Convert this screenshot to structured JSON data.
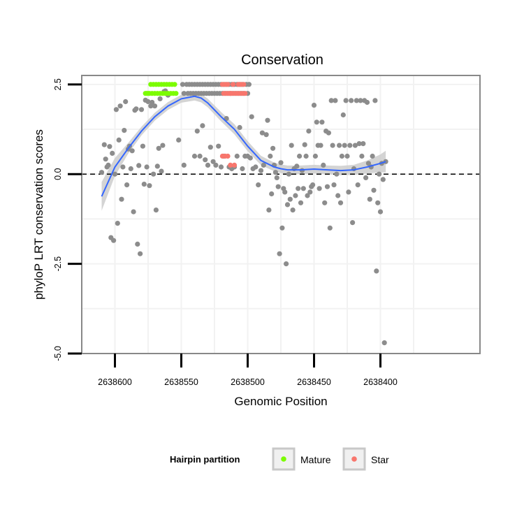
{
  "chart_data": {
    "type": "scatter",
    "title": "Conservation",
    "xlabel": "Genomic Position",
    "ylabel": "phyloP LRT conservation scores",
    "xlim": [
      2638325,
      2638625
    ],
    "x_reversed": true,
    "ylim": [
      -5.0,
      2.75
    ],
    "x_ticks": [
      2638600,
      2638550,
      2638500,
      2638450,
      2638400
    ],
    "x_tick_labels": [
      "2638600",
      "2638550",
      "2638500",
      "2638450",
      "2638400"
    ],
    "y_ticks": [
      2.5,
      0.0,
      -2.5,
      -5.0
    ],
    "y_tick_labels": [
      "2.5",
      "0.0",
      "-2.5",
      "-5.0"
    ],
    "grid": true,
    "reference_line": {
      "y": 0,
      "style": "dashed"
    },
    "legend": {
      "title": "Hairpin partition",
      "position": "bottom",
      "entries": [
        {
          "label": "Mature",
          "color": "#7CFC00"
        },
        {
          "label": "Star",
          "color": "#F8766D"
        }
      ]
    },
    "colors": {
      "other": "#8c8c8c",
      "smooth_line": "#3366FF",
      "smooth_band": "#cccccc",
      "panel_border": "#888888",
      "grid": "#f2f2f2"
    },
    "series": [
      {
        "name": "",
        "color": "#8c8c8c",
        "points": [
          [
            2638610,
            0.05
          ],
          [
            2638608,
            0.82
          ],
          [
            2638607,
            0.42
          ],
          [
            2638606,
            0.2
          ],
          [
            2638605,
            0.25
          ],
          [
            2638604,
            0.77
          ],
          [
            2638603,
            -1.77
          ],
          [
            2638602,
            0.58
          ],
          [
            2638601,
            -1.85
          ],
          [
            2638600,
            0.0
          ],
          [
            2638599,
            1.8
          ],
          [
            2638598,
            -1.37
          ],
          [
            2638597,
            0.95
          ],
          [
            2638596,
            1.9
          ],
          [
            2638595,
            -0.7
          ],
          [
            2638594,
            0.2
          ],
          [
            2638593,
            1.22
          ],
          [
            2638592,
            2.02
          ],
          [
            2638591,
            -0.3
          ],
          [
            2638590,
            0.7
          ],
          [
            2638589,
            0.78
          ],
          [
            2638588,
            0.15
          ],
          [
            2638587,
            0.65
          ],
          [
            2638586,
            -1.05
          ],
          [
            2638585,
            1.78
          ],
          [
            2638584,
            1.82
          ],
          [
            2638583,
            -1.95
          ],
          [
            2638582,
            0.24
          ],
          [
            2638581,
            -2.22
          ],
          [
            2638580,
            1.8
          ],
          [
            2638579,
            0.78
          ],
          [
            2638578,
            -0.28
          ],
          [
            2638577,
            2.06
          ],
          [
            2638576,
            0.2
          ],
          [
            2638575,
            2.02
          ],
          [
            2638574,
            -0.32
          ],
          [
            2638573,
            1.9
          ],
          [
            2638572,
            2.0
          ],
          [
            2638571,
            0.0
          ],
          [
            2638570,
            1.9
          ],
          [
            2638569,
            -1.0
          ],
          [
            2638568,
            0.22
          ],
          [
            2638567,
            0.72
          ],
          [
            2638566,
            2.1
          ],
          [
            2638565,
            0.08
          ],
          [
            2638564,
            0.8
          ],
          [
            2638563,
            2.3
          ],
          [
            2638562,
            2.32
          ],
          [
            2638561,
            2.25
          ],
          [
            2638560,
            2.2
          ],
          [
            2638549,
            2.5
          ],
          [
            2638548,
            2.25
          ],
          [
            2638546,
            2.5
          ],
          [
            2638545,
            2.25
          ],
          [
            2638544,
            2.5
          ],
          [
            2638543,
            2.25
          ],
          [
            2638542,
            2.5
          ],
          [
            2638541,
            2.25
          ],
          [
            2638540,
            2.5
          ],
          [
            2638539,
            2.25
          ],
          [
            2638538,
            2.5
          ],
          [
            2638537,
            2.25
          ],
          [
            2638536,
            2.5
          ],
          [
            2638535,
            2.25
          ],
          [
            2638534,
            2.5
          ],
          [
            2638533,
            2.25
          ],
          [
            2638532,
            2.5
          ],
          [
            2638531,
            2.25
          ],
          [
            2638530,
            2.5
          ],
          [
            2638529,
            2.25
          ],
          [
            2638528,
            2.5
          ],
          [
            2638527,
            2.25
          ],
          [
            2638526,
            2.5
          ],
          [
            2638525,
            2.25
          ],
          [
            2638524,
            2.5
          ],
          [
            2638523,
            2.25
          ],
          [
            2638522,
            2.5
          ],
          [
            2638521,
            2.25
          ],
          [
            2638520,
            2.5
          ],
          [
            2638519,
            2.25
          ],
          [
            2638518,
            2.5
          ],
          [
            2638517,
            2.25
          ],
          [
            2638516,
            2.5
          ],
          [
            2638515,
            2.25
          ],
          [
            2638514,
            2.5
          ],
          [
            2638513,
            2.25
          ],
          [
            2638512,
            2.5
          ],
          [
            2638511,
            2.25
          ],
          [
            2638510,
            2.5
          ],
          [
            2638509,
            2.25
          ],
          [
            2638508,
            2.5
          ],
          [
            2638507,
            2.25
          ],
          [
            2638506,
            2.5
          ],
          [
            2638505,
            2.25
          ],
          [
            2638504,
            2.5
          ],
          [
            2638503,
            2.25
          ],
          [
            2638501,
            2.5
          ],
          [
            2638500,
            2.25
          ],
          [
            2638499,
            2.5
          ],
          [
            2638552,
            0.95
          ],
          [
            2638548,
            0.25
          ],
          [
            2638540,
            0.5
          ],
          [
            2638538,
            1.2
          ],
          [
            2638536,
            0.5
          ],
          [
            2638534,
            1.35
          ],
          [
            2638532,
            0.4
          ],
          [
            2638530,
            0.25
          ],
          [
            2638528,
            0.75
          ],
          [
            2638526,
            0.35
          ],
          [
            2638524,
            0.25
          ],
          [
            2638522,
            0.78
          ],
          [
            2638520,
            0.2
          ],
          [
            2638518,
            0.5
          ],
          [
            2638516,
            1.55
          ],
          [
            2638514,
            0.2
          ],
          [
            2638512,
            0.15
          ],
          [
            2638510,
            0.2
          ],
          [
            2638508,
            0.5
          ],
          [
            2638506,
            1.3
          ],
          [
            2638504,
            0.15
          ],
          [
            2638502,
            0.5
          ],
          [
            2638500,
            0.5
          ],
          [
            2638498,
            0.45
          ],
          [
            2638497,
            1.6
          ],
          [
            2638496,
            0.15
          ],
          [
            2638494,
            0.2
          ],
          [
            2638492,
            -0.3
          ],
          [
            2638490,
            0.1
          ],
          [
            2638489,
            1.15
          ],
          [
            2638488,
            0.25
          ],
          [
            2638486,
            1.1
          ],
          [
            2638485,
            1.5
          ],
          [
            2638484,
            -1.0
          ],
          [
            2638483,
            0.5
          ],
          [
            2638482,
            -0.55
          ],
          [
            2638481,
            0.72
          ],
          [
            2638480,
            0.25
          ],
          [
            2638479,
            0.05
          ],
          [
            2638478,
            -0.1
          ],
          [
            2638477,
            -0.35
          ],
          [
            2638476,
            -2.22
          ],
          [
            2638475,
            0.32
          ],
          [
            2638474,
            -1.5
          ],
          [
            2638473,
            -0.4
          ],
          [
            2638472,
            -0.5
          ],
          [
            2638471,
            -2.5
          ],
          [
            2638470,
            -0.85
          ],
          [
            2638469,
            0.0
          ],
          [
            2638468,
            -0.7
          ],
          [
            2638467,
            0.8
          ],
          [
            2638466,
            -1.0
          ],
          [
            2638465,
            0.15
          ],
          [
            2638464,
            -0.6
          ],
          [
            2638463,
            0.22
          ],
          [
            2638462,
            -0.4
          ],
          [
            2638461,
            0.5
          ],
          [
            2638460,
            -0.8
          ],
          [
            2638459,
            0.1
          ],
          [
            2638458,
            -0.4
          ],
          [
            2638457,
            0.82
          ],
          [
            2638456,
            0.5
          ],
          [
            2638455,
            -0.6
          ],
          [
            2638454,
            1.2
          ],
          [
            2638453,
            -0.5
          ],
          [
            2638452,
            -0.35
          ],
          [
            2638451,
            -0.3
          ],
          [
            2638450,
            1.92
          ],
          [
            2638449,
            0.5
          ],
          [
            2638448,
            1.45
          ],
          [
            2638447,
            0.8
          ],
          [
            2638446,
            -0.4
          ],
          [
            2638445,
            0.8
          ],
          [
            2638444,
            1.45
          ],
          [
            2638443,
            0.25
          ],
          [
            2638442,
            -0.8
          ],
          [
            2638441,
            1.2
          ],
          [
            2638440,
            -0.35
          ],
          [
            2638439,
            1.15
          ],
          [
            2638438,
            -1.5
          ],
          [
            2638437,
            2.05
          ],
          [
            2638436,
            0.8
          ],
          [
            2638435,
            -0.3
          ],
          [
            2638434,
            2.05
          ],
          [
            2638433,
            0.0
          ],
          [
            2638432,
            -0.6
          ],
          [
            2638431,
            0.8
          ],
          [
            2638430,
            -0.8
          ],
          [
            2638429,
            0.5
          ],
          [
            2638428,
            1.65
          ],
          [
            2638427,
            0.8
          ],
          [
            2638426,
            2.05
          ],
          [
            2638425,
            0.5
          ],
          [
            2638424,
            -0.5
          ],
          [
            2638423,
            0.8
          ],
          [
            2638422,
            2.05
          ],
          [
            2638421,
            -1.35
          ],
          [
            2638420,
            0.15
          ],
          [
            2638419,
            0.8
          ],
          [
            2638418,
            2.05
          ],
          [
            2638417,
            -0.3
          ],
          [
            2638416,
            0.85
          ],
          [
            2638415,
            2.05
          ],
          [
            2638414,
            0.5
          ],
          [
            2638413,
            0.85
          ],
          [
            2638412,
            2.05
          ],
          [
            2638411,
            -0.1
          ],
          [
            2638410,
            2.0
          ],
          [
            2638409,
            0.3
          ],
          [
            2638408,
            -0.7
          ],
          [
            2638407,
            0.2
          ],
          [
            2638406,
            0.5
          ],
          [
            2638405,
            -0.45
          ],
          [
            2638404,
            2.05
          ],
          [
            2638403,
            -2.7
          ],
          [
            2638402,
            -0.8
          ],
          [
            2638401,
            0.0
          ],
          [
            2638400,
            -1.05
          ],
          [
            2638399,
            0.3
          ],
          [
            2638398,
            -0.15
          ],
          [
            2638397,
            -4.7
          ],
          [
            2638396,
            0.35
          ]
        ]
      },
      {
        "name": "Mature",
        "color": "#7CFC00",
        "points": [
          [
            2638577,
            2.25
          ],
          [
            2638576,
            2.25
          ],
          [
            2638575,
            2.25
          ],
          [
            2638574,
            2.25
          ],
          [
            2638573,
            2.5
          ],
          [
            2638572,
            2.25
          ],
          [
            2638571,
            2.5
          ],
          [
            2638570,
            2.25
          ],
          [
            2638569,
            2.5
          ],
          [
            2638568,
            2.25
          ],
          [
            2638567,
            2.5
          ],
          [
            2638566,
            2.25
          ],
          [
            2638565,
            2.5
          ],
          [
            2638564,
            2.25
          ],
          [
            2638563,
            2.5
          ],
          [
            2638562,
            2.25
          ],
          [
            2638561,
            2.5
          ],
          [
            2638560,
            2.25
          ],
          [
            2638559,
            2.5
          ],
          [
            2638558,
            2.25
          ],
          [
            2638557,
            2.5
          ],
          [
            2638556,
            2.25
          ],
          [
            2638555,
            2.5
          ],
          [
            2638554,
            2.25
          ]
        ]
      },
      {
        "name": "Star",
        "color": "#F8766D",
        "points": [
          [
            2638519,
            2.5
          ],
          [
            2638518,
            2.25
          ],
          [
            2638517,
            2.5
          ],
          [
            2638516,
            2.25
          ],
          [
            2638515,
            2.5
          ],
          [
            2638514,
            2.25
          ],
          [
            2638513,
            2.25
          ],
          [
            2638512,
            2.25
          ],
          [
            2638511,
            2.5
          ],
          [
            2638510,
            2.25
          ],
          [
            2638508,
            2.25
          ],
          [
            2638507,
            2.5
          ],
          [
            2638506,
            2.25
          ],
          [
            2638505,
            2.5
          ],
          [
            2638504,
            2.25
          ],
          [
            2638503,
            2.5
          ],
          [
            2638502,
            2.25
          ],
          [
            2638519,
            0.5
          ],
          [
            2638517,
            0.5
          ],
          [
            2638515,
            0.5
          ],
          [
            2638513,
            0.25
          ],
          [
            2638510,
            0.25
          ]
        ]
      }
    ],
    "smooth": {
      "x": [
        2638610,
        2638600,
        2638590,
        2638580,
        2638570,
        2638560,
        2638550,
        2638540,
        2638535,
        2638530,
        2638520,
        2638510,
        2638500,
        2638490,
        2638480,
        2638475,
        2638470,
        2638460,
        2638450,
        2638440,
        2638430,
        2638420,
        2638410,
        2638400,
        2638396
      ],
      "y": [
        -0.62,
        0.2,
        0.72,
        1.2,
        1.6,
        1.9,
        2.1,
        2.17,
        2.12,
        1.98,
        1.6,
        1.25,
        0.78,
        0.38,
        0.2,
        0.15,
        0.12,
        0.12,
        0.14,
        0.12,
        0.1,
        0.12,
        0.2,
        0.3,
        0.35
      ],
      "band_half_width": [
        0.4,
        0.25,
        0.15,
        0.12,
        0.11,
        0.11,
        0.11,
        0.12,
        0.12,
        0.12,
        0.13,
        0.14,
        0.14,
        0.13,
        0.12,
        0.12,
        0.12,
        0.12,
        0.12,
        0.12,
        0.13,
        0.14,
        0.18,
        0.25,
        0.3
      ]
    }
  }
}
